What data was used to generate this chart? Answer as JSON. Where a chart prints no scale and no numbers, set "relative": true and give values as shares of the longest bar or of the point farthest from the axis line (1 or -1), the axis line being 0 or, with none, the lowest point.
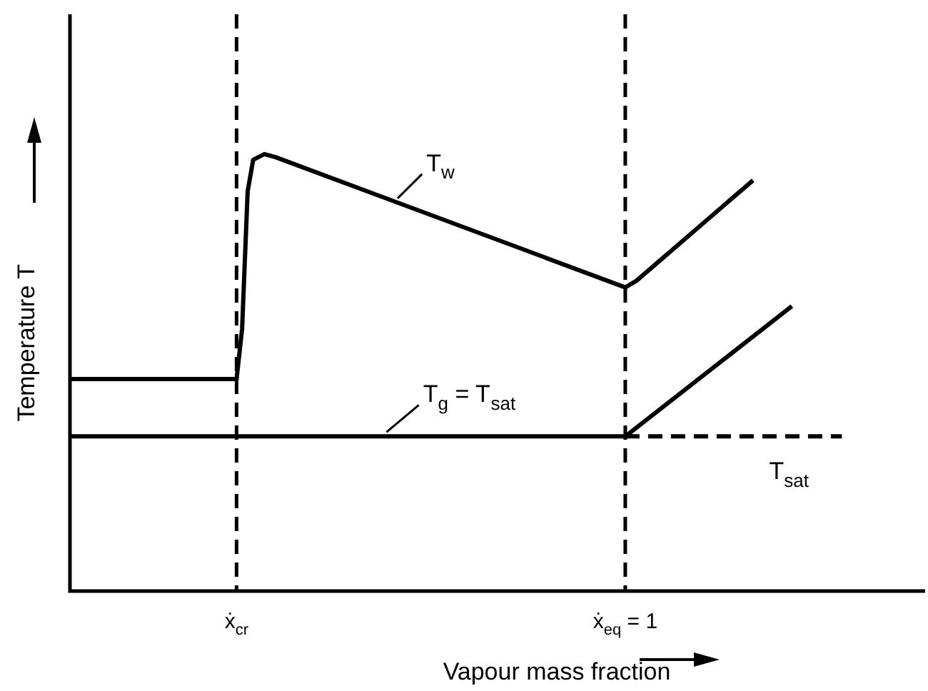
{
  "chart_data": {
    "type": "line",
    "relative": true,
    "xlabel": "Vapour mass fraction",
    "ylabel": "Temperature T",
    "categories": [
      null,
      null,
      null,
      null,
      null,
      null,
      null,
      null,
      null,
      null,
      null,
      null,
      null,
      null,
      null,
      null,
      null,
      null,
      null,
      null,
      null,
      null,
      null,
      null,
      null,
      null,
      null,
      null,
      null,
      null,
      "ẋ$_{cr}$",
      null,
      null,
      null,
      null,
      null,
      null,
      null,
      null,
      null,
      null,
      null,
      null,
      null,
      null,
      null,
      null,
      null,
      null,
      null,
      null,
      null,
      null,
      null,
      null,
      null,
      null,
      null,
      null,
      null,
      null,
      null,
      null,
      null,
      null,
      null,
      null,
      null,
      null,
      null,
      null,
      null,
      null,
      null,
      null,
      null,
      null,
      null,
      null,
      null,
      null,
      null,
      null,
      null,
      null,
      null,
      null,
      null,
      null,
      null,
      null,
      null,
      null,
      null,
      null,
      null,
      null,
      null,
      null,
      null,
      "ẋ$_{eq}$ = 1",
      null,
      null,
      null,
      null,
      null,
      null,
      null,
      null,
      null,
      null,
      null,
      null,
      null,
      null,
      null,
      null,
      null,
      null,
      null,
      null,
      null,
      null,
      null,
      null,
      null,
      null,
      null,
      null,
      null,
      null,
      null,
      null,
      null,
      null,
      null,
      null,
      null,
      null,
      null,
      null,
      null,
      null,
      null,
      null,
      null,
      null,
      null,
      null,
      null,
      null,
      null,
      null,
      null,
      null
    ],
    "series": [
      {
        "name": "T$_{w}$",
        "color": "#000000",
        "line_style": "solid",
        "values": [
          0.485,
          null,
          null,
          null,
          null,
          null,
          null,
          null,
          null,
          null,
          null,
          null,
          null,
          null,
          null,
          null,
          null,
          null,
          null,
          null,
          null,
          null,
          null,
          null,
          null,
          null,
          null,
          null,
          null,
          null,
          0.485,
          0.6,
          0.915,
          0.987,
          null,
          1,
          null,
          0.993,
          null,
          null,
          null,
          null,
          null,
          null,
          null,
          null,
          null,
          null,
          null,
          null,
          null,
          null,
          null,
          null,
          null,
          null,
          null,
          null,
          null,
          null,
          null,
          null,
          null,
          null,
          null,
          null,
          null,
          null,
          null,
          null,
          null,
          null,
          null,
          null,
          null,
          null,
          null,
          null,
          null,
          null,
          null,
          null,
          null,
          null,
          null,
          null,
          null,
          null,
          null,
          null,
          null,
          null,
          null,
          null,
          null,
          null,
          null,
          null,
          null,
          null,
          0.695,
          null,
          0.71,
          null,
          null,
          null,
          null,
          null,
          null,
          null,
          null,
          null,
          null,
          null,
          null,
          null,
          null,
          null,
          null,
          null,
          null,
          null,
          null,
          0.94,
          null,
          null,
          null,
          null,
          null,
          null,
          null,
          null,
          null,
          null,
          null,
          null,
          null,
          null,
          null,
          null,
          null,
          null,
          null,
          null,
          null,
          null,
          null,
          null,
          null,
          null,
          null,
          null,
          null,
          null,
          null
        ]
      },
      {
        "name": "T$_{g}$ = T$_{sat}$",
        "color": "#000000",
        "line_style": "solid",
        "values": [
          0.354,
          null,
          null,
          null,
          null,
          null,
          null,
          null,
          null,
          null,
          null,
          null,
          null,
          null,
          null,
          null,
          null,
          null,
          null,
          null,
          null,
          null,
          null,
          null,
          null,
          null,
          null,
          null,
          null,
          null,
          null,
          null,
          null,
          null,
          null,
          null,
          null,
          null,
          null,
          null,
          null,
          null,
          null,
          null,
          null,
          null,
          null,
          null,
          null,
          null,
          null,
          null,
          null,
          null,
          null,
          null,
          null,
          null,
          null,
          null,
          null,
          null,
          null,
          null,
          null,
          null,
          null,
          null,
          null,
          null,
          null,
          null,
          null,
          null,
          null,
          null,
          null,
          null,
          null,
          null,
          null,
          null,
          null,
          null,
          null,
          null,
          null,
          null,
          null,
          null,
          null,
          null,
          null,
          null,
          null,
          null,
          null,
          null,
          null,
          null,
          0.354,
          null,
          null,
          null,
          null,
          null,
          null,
          null,
          null,
          null,
          null,
          null,
          null,
          null,
          null,
          null,
          null,
          null,
          null,
          null,
          null,
          null,
          null,
          null,
          null,
          null,
          null,
          null,
          null,
          null,
          0.652,
          null,
          null,
          null,
          null,
          null,
          null,
          null,
          null,
          null,
          null,
          null,
          null,
          null,
          null,
          null,
          null,
          null,
          null,
          null,
          null,
          null,
          null,
          null,
          null
        ]
      },
      {
        "name": "T$_{sat}$",
        "color": "#000000",
        "line_style": "dashed",
        "values": [
          null,
          null,
          null,
          null,
          null,
          null,
          null,
          null,
          null,
          null,
          null,
          null,
          null,
          null,
          null,
          null,
          null,
          null,
          null,
          null,
          null,
          null,
          null,
          null,
          null,
          null,
          null,
          null,
          null,
          null,
          null,
          null,
          null,
          null,
          null,
          null,
          null,
          null,
          null,
          null,
          null,
          null,
          null,
          null,
          null,
          null,
          null,
          null,
          null,
          null,
          null,
          null,
          null,
          null,
          null,
          null,
          null,
          null,
          null,
          null,
          null,
          null,
          null,
          null,
          null,
          null,
          null,
          null,
          null,
          null,
          null,
          null,
          null,
          null,
          null,
          null,
          null,
          null,
          null,
          null,
          null,
          null,
          null,
          null,
          null,
          null,
          null,
          null,
          null,
          null,
          null,
          null,
          null,
          null,
          null,
          null,
          null,
          null,
          null,
          null,
          0.354,
          null,
          null,
          null,
          null,
          null,
          null,
          null,
          null,
          null,
          null,
          null,
          null,
          null,
          null,
          null,
          null,
          null,
          null,
          null,
          null,
          null,
          null,
          null,
          null,
          null,
          null,
          null,
          null,
          null,
          null,
          null,
          null,
          null,
          null,
          null,
          null,
          null,
          null,
          0.354,
          null,
          null,
          null,
          null,
          null,
          null,
          null,
          null,
          null,
          null,
          null,
          null,
          null,
          null,
          null
        ]
      }
    ],
    "ref_lines": [
      {
        "axis": "x",
        "value": "ẋ$_{cr}$",
        "line_style": "dashed",
        "color": "#000000"
      },
      {
        "axis": "x",
        "value": "ẋ$_{eq}$ = 1",
        "line_style": "dashed",
        "color": "#000000"
      }
    ],
    "marker": "none",
    "grid": false,
    "legend": false
  }
}
